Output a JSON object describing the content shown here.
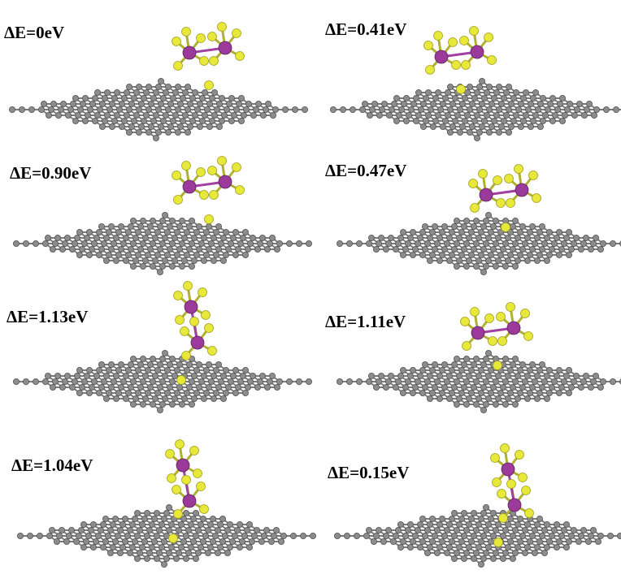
{
  "panels": [
    {
      "label": "ΔE=0eV"
    },
    {
      "label": "ΔE=0.41eV"
    },
    {
      "label": "ΔE=0.90eV"
    },
    {
      "label": "ΔE=0.47eV"
    },
    {
      "label": "ΔE=1.13eV"
    },
    {
      "label": "ΔE=1.11eV"
    },
    {
      "label": "ΔE=1.04eV"
    },
    {
      "label": "ΔE=0.15eV"
    }
  ]
}
